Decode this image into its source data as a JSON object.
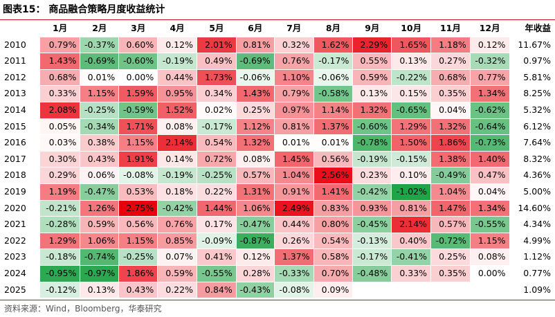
{
  "title": "图表15：  商品融合策略月度收益统计",
  "source": "资料来源：Wind，Bloomberg，华泰研究",
  "colors": {
    "accent": "#c8102e",
    "positive": "#e8000b",
    "negative": "#21a448"
  },
  "chart_data": {
    "type": "table",
    "columns": [
      "1月",
      "2月",
      "3月",
      "4月",
      "5月",
      "6月",
      "7月",
      "8月",
      "9月",
      "10月",
      "11月",
      "12月",
      "年收益"
    ],
    "rows": [
      {
        "year": "2010",
        "months": [
          "0.79%",
          "-0.37%",
          "0.60%",
          "0.12%",
          "2.01%",
          "0.81%",
          "0.32%",
          "1.62%",
          "2.29%",
          "1.65%",
          "1.18%",
          "0.12%"
        ],
        "annual": "11.67%"
      },
      {
        "year": "2011",
        "months": [
          "1.43%",
          "-0.69%",
          "-0.60%",
          "-0.19%",
          "0.49%",
          "-0.69%",
          "0.76%",
          "-0.17%",
          "0.55%",
          "0.13%",
          "0.27%",
          "-0.32%"
        ],
        "annual": "0.97%"
      },
      {
        "year": "2012",
        "months": [
          "0.68%",
          "0.01%",
          "0.00%",
          "0.44%",
          "1.73%",
          "-0.06%",
          "1.10%",
          "-0.06%",
          "0.59%",
          "-0.22%",
          "0.68%",
          "0.77%"
        ],
        "annual": "5.81%"
      },
      {
        "year": "2013",
        "months": [
          "0.33%",
          "1.15%",
          "1.59%",
          "0.95%",
          "0.34%",
          "1.43%",
          "0.79%",
          "-0.58%",
          "0.13%",
          "0.15%",
          "0.35%",
          "1.34%"
        ],
        "annual": "8.25%"
      },
      {
        "year": "2014",
        "months": [
          "2.08%",
          "-0.25%",
          "-0.59%",
          "1.52%",
          "0.02%",
          "0.25%",
          "0.97%",
          "1.14%",
          "1.32%",
          "-0.65%",
          "0.04%",
          "-0.62%"
        ],
        "annual": "5.32%"
      },
      {
        "year": "2015",
        "months": [
          "0.05%",
          "-0.34%",
          "1.71%",
          "0.08%",
          "-0.17%",
          "1.12%",
          "0.81%",
          "1.37%",
          "-0.60%",
          "1.29%",
          "1.32%",
          "-0.64%"
        ],
        "annual": "6.12%"
      },
      {
        "year": "2016",
        "months": [
          "0.03%",
          "0.38%",
          "1.15%",
          "2.14%",
          "0.54%",
          "1.32%",
          "0.01%",
          "0.01%",
          "-0.78%",
          "1.50%",
          "1.86%",
          "-0.73%"
        ],
        "annual": "7.64%"
      },
      {
        "year": "2017",
        "months": [
          "0.30%",
          "0.43%",
          "1.91%",
          "0.14%",
          "0.72%",
          "0.08%",
          "1.45%",
          "0.56%",
          "-0.19%",
          "-0.15%",
          "1.38%",
          "1.40%"
        ],
        "annual": "8.32%"
      },
      {
        "year": "2018",
        "months": [
          "0.29%",
          "0.06%",
          "-0.08%",
          "-0.19%",
          "-0.25%",
          "0.57%",
          "1.04%",
          "2.56%",
          "0.23%",
          "0.10%",
          "-0.49%",
          "0.47%"
        ],
        "annual": "4.36%"
      },
      {
        "year": "2019",
        "months": [
          "1.19%",
          "-0.47%",
          "0.53%",
          "0.18%",
          "0.22%",
          "1.31%",
          "0.91%",
          "1.41%",
          "-0.42%",
          "-1.02%",
          "1.04%",
          "0.04%"
        ],
        "annual": "5.00%"
      },
      {
        "year": "2020",
        "months": [
          "-0.21%",
          "1.26%",
          "2.75%",
          "-0.42%",
          "1.44%",
          "1.06%",
          "2.49%",
          "0.83%",
          "0.93%",
          "0.81%",
          "1.47%",
          "1.34%"
        ],
        "annual": "14.60%"
      },
      {
        "year": "2021",
        "months": [
          "-0.28%",
          "0.59%",
          "0.56%",
          "0.76%",
          "0.17%",
          "-0.47%",
          "0.44%",
          "0.80%",
          "-0.45%",
          "2.14%",
          "0.57%",
          "-0.55%"
        ],
        "annual": "4.34%"
      },
      {
        "year": "2022",
        "months": [
          "1.29%",
          "1.06%",
          "1.15%",
          "0.85%",
          "-0.09%",
          "-0.87%",
          "0.26%",
          "0.54%",
          "-0.13%",
          "0.40%",
          "-0.72%",
          "1.15%"
        ],
        "annual": "4.99%"
      },
      {
        "year": "2023",
        "months": [
          "-0.18%",
          "-0.74%",
          "-0.25%",
          "0.07%",
          "0.41%",
          "0.12%",
          "1.37%",
          "0.58%",
          "-0.17%",
          "-0.41%",
          "0.25%",
          "0.08%"
        ],
        "annual": "1.12%"
      },
      {
        "year": "2024",
        "months": [
          "-0.95%",
          "-0.97%",
          "1.86%",
          "0.59%",
          "-0.55%",
          "0.28%",
          "-0.33%",
          "0.70%",
          "-0.48%",
          "0.33%",
          "0.35%",
          "0.00%"
        ],
        "annual": "0.77%"
      },
      {
        "year": "2025",
        "months": [
          "-0.12%",
          "0.13%",
          "0.43%",
          "0.22%",
          "0.84%",
          "-0.43%",
          "-0.08%",
          "0.09%",
          "",
          "",
          "",
          ""
        ],
        "annual": "1.09%"
      }
    ]
  }
}
